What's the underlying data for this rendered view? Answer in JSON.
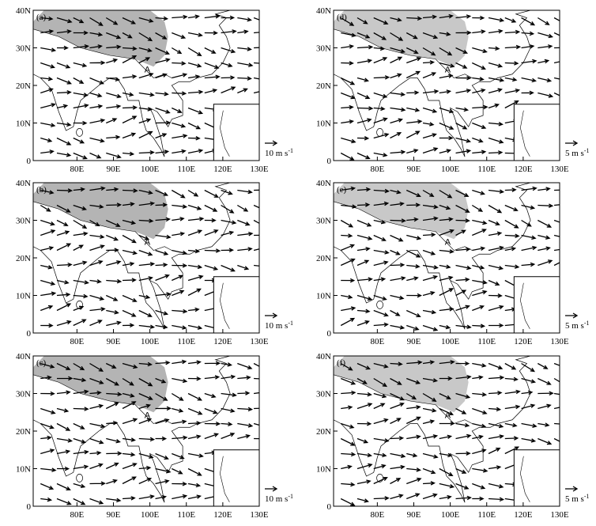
{
  "axes": {
    "xlim": [
      68,
      130
    ],
    "ylim": [
      0,
      40
    ],
    "xticks": [
      {
        "value": 80,
        "label": "80E"
      },
      {
        "value": 90,
        "label": "90E"
      },
      {
        "value": 100,
        "label": "100E"
      },
      {
        "value": 110,
        "label": "110E"
      },
      {
        "value": 120,
        "label": "120E"
      },
      {
        "value": 130,
        "label": "130E"
      }
    ],
    "yticks": [
      {
        "value": 0,
        "label": "0"
      },
      {
        "value": 10,
        "label": "10N"
      },
      {
        "value": 20,
        "label": "20N"
      },
      {
        "value": 30,
        "label": "30N"
      },
      {
        "value": 40,
        "label": "40N"
      }
    ]
  },
  "panels": [
    {
      "label": "(a)",
      "marker": "A",
      "ref_label": "10 m s",
      "ref_exp": "-1",
      "plateau_color": "#b4b4b4"
    },
    {
      "label": "(d)",
      "marker": "A",
      "ref_label": "5 m s",
      "ref_exp": "-1",
      "plateau_color": "#c8c8c8"
    },
    {
      "label": "(b)",
      "marker": "A",
      "ref_label": "10 m s",
      "ref_exp": "-1",
      "plateau_color": "#b4b4b4"
    },
    {
      "label": "(e)",
      "marker": "A",
      "ref_label": "5 m s",
      "ref_exp": "-1",
      "plateau_color": "#c8c8c8"
    },
    {
      "label": "(c)",
      "marker": "A",
      "ref_label": "10 m s",
      "ref_exp": "-1",
      "plateau_color": "#b4b4b4"
    },
    {
      "label": "(f)",
      "marker": "A",
      "ref_label": "5 m s",
      "ref_exp": "-1",
      "plateau_color": "#c8c8c8"
    }
  ]
}
